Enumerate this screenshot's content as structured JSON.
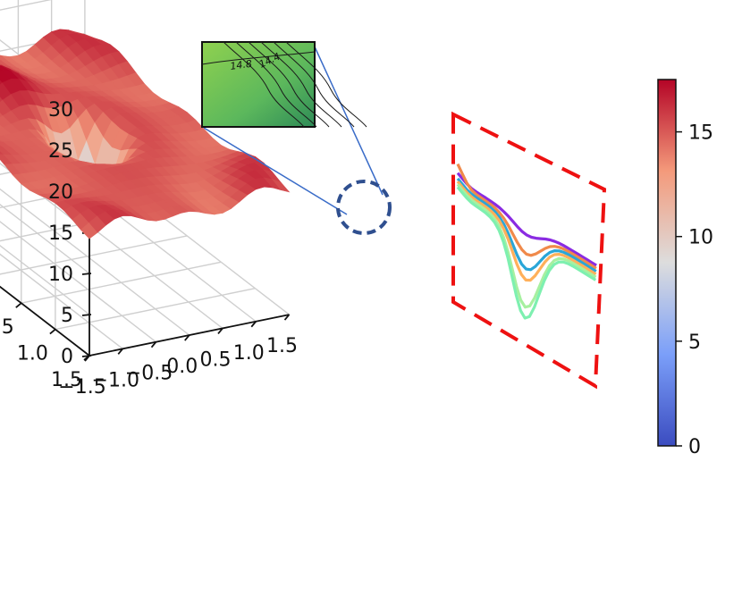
{
  "chart_data": {
    "type": "surface3d",
    "title": "",
    "xlabel": "",
    "ylabel": "",
    "zlabel": "",
    "x_range": [
      -1.5,
      1.5
    ],
    "y_range": [
      -1.5,
      1.5
    ],
    "z_range": [
      0,
      30
    ],
    "grid": true,
    "x_ticks": [
      "-1.5",
      "-1.0",
      "-0.5",
      "0.0",
      "0.5",
      "1.0",
      "1.5"
    ],
    "y_ticks": [
      "-1.5",
      "-1.0",
      "-0.5",
      "0.0",
      "0.5",
      "1.0",
      "1.5"
    ],
    "z_ticks": [
      "0",
      "5",
      "10",
      "15",
      "20",
      "25",
      "30"
    ],
    "surface": {
      "colormap": "coolwarm",
      "plateau_height": 15,
      "well_center": [
        0.0,
        0.0
      ],
      "well_min": 2
    },
    "colorbar": {
      "range": [
        0,
        17.5
      ],
      "ticks": [
        "0",
        "5",
        "10",
        "15"
      ],
      "low_color": "#3b4cc0",
      "mid_color": "#dddddd",
      "high_color": "#b40426",
      "placement": "right"
    },
    "inset": {
      "contour_labels": [
        "14.8",
        "14.4"
      ],
      "fill_color": "#5cb85c",
      "highlight_circle_color": "#2f4f8f"
    },
    "projection_panel": {
      "border_color": "#ee1111",
      "series_colors": [
        "#8a2be2",
        "#f08a4b",
        "#2aa6d8",
        "#ffb05a",
        "#a7f0a0",
        "#7ef0b0"
      ]
    }
  }
}
